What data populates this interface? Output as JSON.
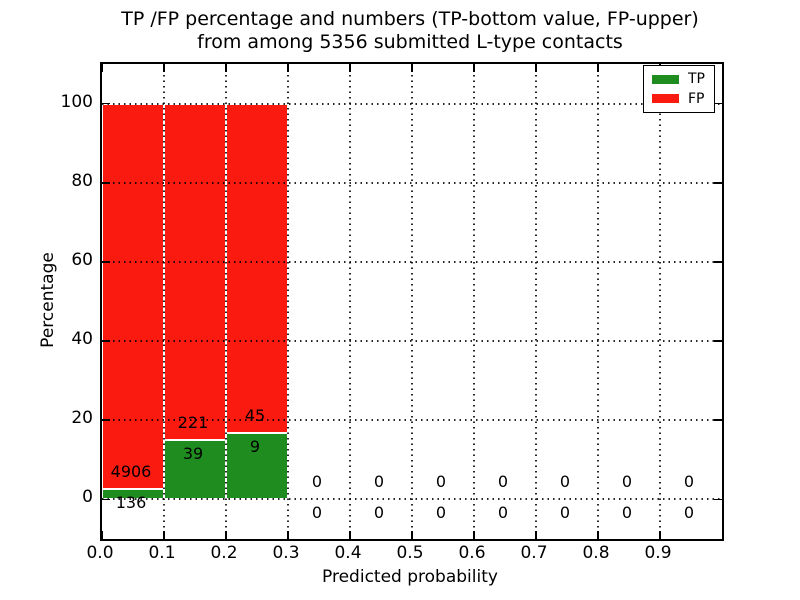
{
  "figure": {
    "title_line1": "TP /FP percentage and numbers (TP-bottom value, FP-upper)",
    "title_line2": "from among 5356 submitted L-type contacts",
    "xlabel": "Predicted probability",
    "ylabel": "Percentage"
  },
  "legend": {
    "position": "upper right",
    "items": [
      {
        "label": "TP",
        "color": "#1e8c1e"
      },
      {
        "label": "FP",
        "color": "#fb1a10"
      }
    ]
  },
  "chart_data": {
    "type": "bar",
    "stacked": true,
    "title": "TP /FP percentage and numbers (TP-bottom value, FP-upper) from among 5356 submitted L-type contacts",
    "xlabel": "Predicted probability",
    "ylabel": "Percentage",
    "xlim": [
      0.0,
      1.0
    ],
    "ylim": [
      -10,
      110
    ],
    "grid": "dotted",
    "legend_position": "upper right",
    "total_submitted": 5356,
    "x_ticks": [
      0.0,
      0.1,
      0.2,
      0.3,
      0.4,
      0.5,
      0.6,
      0.7,
      0.8,
      0.9
    ],
    "x_tick_labels": [
      "0.0",
      "0.1",
      "0.2",
      "0.3",
      "0.4",
      "0.5",
      "0.6",
      "0.7",
      "0.8",
      "0.9"
    ],
    "y_ticks": [
      0,
      20,
      40,
      60,
      80,
      100
    ],
    "y_tick_labels": [
      "0",
      "20",
      "40",
      "60",
      "80",
      "100"
    ],
    "bin_width": 0.1,
    "bins": [
      {
        "x0": 0.0,
        "x1": 0.1,
        "tp": 136,
        "fp": 4906
      },
      {
        "x0": 0.1,
        "x1": 0.2,
        "tp": 39,
        "fp": 221
      },
      {
        "x0": 0.2,
        "x1": 0.3,
        "tp": 9,
        "fp": 45
      },
      {
        "x0": 0.3,
        "x1": 0.4,
        "tp": 0,
        "fp": 0
      },
      {
        "x0": 0.4,
        "x1": 0.5,
        "tp": 0,
        "fp": 0
      },
      {
        "x0": 0.5,
        "x1": 0.6,
        "tp": 0,
        "fp": 0
      },
      {
        "x0": 0.6,
        "x1": 0.7,
        "tp": 0,
        "fp": 0
      },
      {
        "x0": 0.7,
        "x1": 0.8,
        "tp": 0,
        "fp": 0
      },
      {
        "x0": 0.8,
        "x1": 0.9,
        "tp": 0,
        "fp": 0
      },
      {
        "x0": 0.9,
        "x1": 1.0,
        "tp": 0,
        "fp": 0
      }
    ],
    "series": [
      {
        "name": "TP",
        "color": "#1e8c1e",
        "values": [
          136,
          39,
          9,
          0,
          0,
          0,
          0,
          0,
          0,
          0
        ]
      },
      {
        "name": "FP",
        "color": "#fb1a10",
        "values": [
          4906,
          221,
          45,
          0,
          0,
          0,
          0,
          0,
          0,
          0
        ]
      }
    ]
  }
}
